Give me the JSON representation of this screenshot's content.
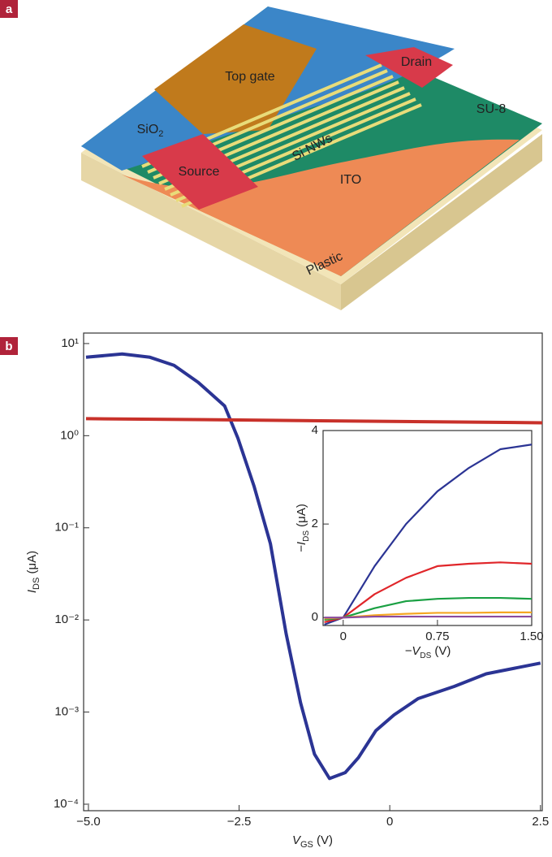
{
  "panel_labels": [
    "a",
    "b"
  ],
  "diagram": {
    "top_gate": "Top gate",
    "drain": "Drain",
    "sio2": {
      "main": "SiO",
      "sub": "2"
    },
    "su8": "SU-8",
    "si_nws": "Si NWs",
    "source": "Source",
    "ito": "ITO",
    "plastic": "Plastic"
  },
  "chart_data": [
    {
      "type": "line",
      "yscale": "log",
      "xlabel": {
        "main": "V",
        "sub": "GS",
        "rest": " (V)"
      },
      "ylabel": {
        "main": "I",
        "sub": "DS",
        "rest": " (μA)"
      },
      "xlim": [
        -5.08,
        2.53
      ],
      "ylim": [
        8.5e-05,
        13
      ],
      "xticks": [
        {
          "value": -5,
          "label": "−5.0"
        },
        {
          "value": -2.5,
          "label": "−2.5"
        },
        0,
        2.5
      ],
      "yticks": [
        {
          "value": 10,
          "label": "10¹"
        },
        {
          "value": 1,
          "label": "10⁰"
        },
        {
          "value": 0.1,
          "label": "10⁻¹"
        },
        {
          "value": 0.01,
          "label": "10⁻²"
        },
        {
          "value": 0.001,
          "label": "10⁻³"
        },
        {
          "value": 0.0001,
          "label": "10⁻⁴"
        }
      ],
      "series": [
        {
          "color": "#2b3494",
          "x": [
            -5.04,
            -4.44,
            -3.98,
            -3.58,
            -3.18,
            -2.74,
            -2.52,
            -2.25,
            -1.98,
            -1.72,
            -1.48,
            -1.25,
            -1.0,
            -0.74,
            -0.52,
            -0.23,
            0.07,
            0.47,
            1.07,
            1.6,
            2.5
          ],
          "values": [
            7.1,
            7.7,
            7.1,
            5.8,
            3.8,
            2.1,
            0.94,
            0.28,
            0.067,
            0.0071,
            0.00126,
            0.00035,
            0.00019,
            0.00022,
            0.00032,
            0.00063,
            0.00093,
            0.0014,
            0.0019,
            0.0026,
            0.0034
          ]
        },
        {
          "color": "#c8312a",
          "x": [
            -5.04,
            -2.5,
            0,
            2.53
          ],
          "values": [
            1.53,
            1.48,
            1.43,
            1.38
          ]
        }
      ]
    },
    {
      "type": "line",
      "xlabel": {
        "main": "−V",
        "sub": "DS",
        "rest": " (V)"
      },
      "ylabel": {
        "main": "−I",
        "sub": "DS",
        "rest": " (μA)"
      },
      "xlim": [
        -0.16,
        1.5
      ],
      "ylim": [
        -0.17,
        4
      ],
      "xticks": [
        0,
        0.75,
        {
          "value": 1.5,
          "label": "1.50"
        }
      ],
      "yticks": [
        0,
        2,
        4
      ],
      "x": [
        -0.15,
        0,
        0.25,
        0.5,
        0.75,
        1.0,
        1.25,
        1.5
      ],
      "series": [
        {
          "color": "#2b3494",
          "values": [
            -0.15,
            0,
            1.1,
            2.0,
            2.7,
            3.2,
            3.6,
            3.7
          ]
        },
        {
          "color": "#e0262a",
          "values": [
            -0.1,
            0,
            0.5,
            0.85,
            1.1,
            1.15,
            1.18,
            1.15
          ]
        },
        {
          "color": "#1aa043",
          "values": [
            -0.05,
            0,
            0.2,
            0.35,
            0.4,
            0.42,
            0.42,
            0.4
          ]
        },
        {
          "color": "#f5a623",
          "values": [
            -0.02,
            0,
            0.05,
            0.08,
            0.1,
            0.1,
            0.11,
            0.11
          ]
        },
        {
          "color": "#8b4a9e",
          "values": [
            0,
            0,
            0.02,
            0.02,
            0.02,
            0.02,
            0.02,
            0.02
          ]
        }
      ]
    }
  ]
}
